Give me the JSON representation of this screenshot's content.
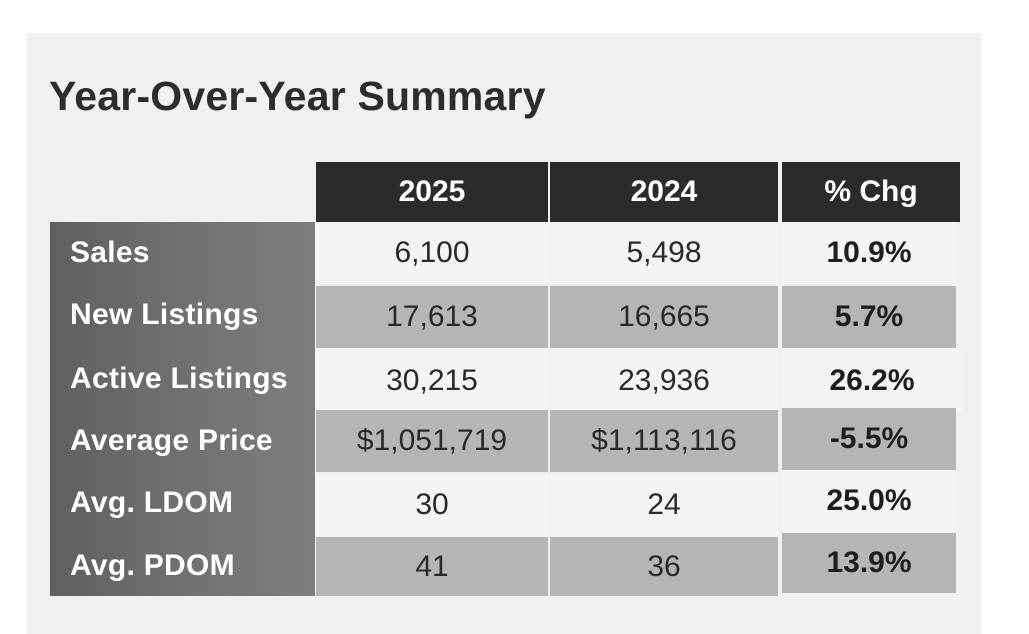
{
  "title": "Year-Over-Year Summary",
  "columns": [
    "2025",
    "2024",
    "% Chg"
  ],
  "rows": [
    {
      "label": "Sales",
      "y2025": "6,100",
      "y2024": "5,498",
      "chg": "10.9%"
    },
    {
      "label": "New Listings",
      "y2025": "17,613",
      "y2024": "16,665",
      "chg": "5.7%"
    },
    {
      "label": "Active Listings",
      "y2025": "30,215",
      "y2024": "23,936",
      "chg": "26.2%"
    },
    {
      "label": "Average Price",
      "y2025": "$1,051,719",
      "y2024": "$1,113,116",
      "chg": "-5.5%"
    },
    {
      "label": "Avg. LDOM",
      "y2025": "30",
      "y2024": "24",
      "chg": "25.0%"
    },
    {
      "label": "Avg. PDOM",
      "y2025": "41",
      "y2024": "36",
      "chg": "13.9%"
    }
  ],
  "colors": {
    "header_bg": "#2b2b2b",
    "label_col": "#6e6e6e",
    "row_light": "#f4f4f4",
    "row_dark": "#b5b5b5"
  }
}
